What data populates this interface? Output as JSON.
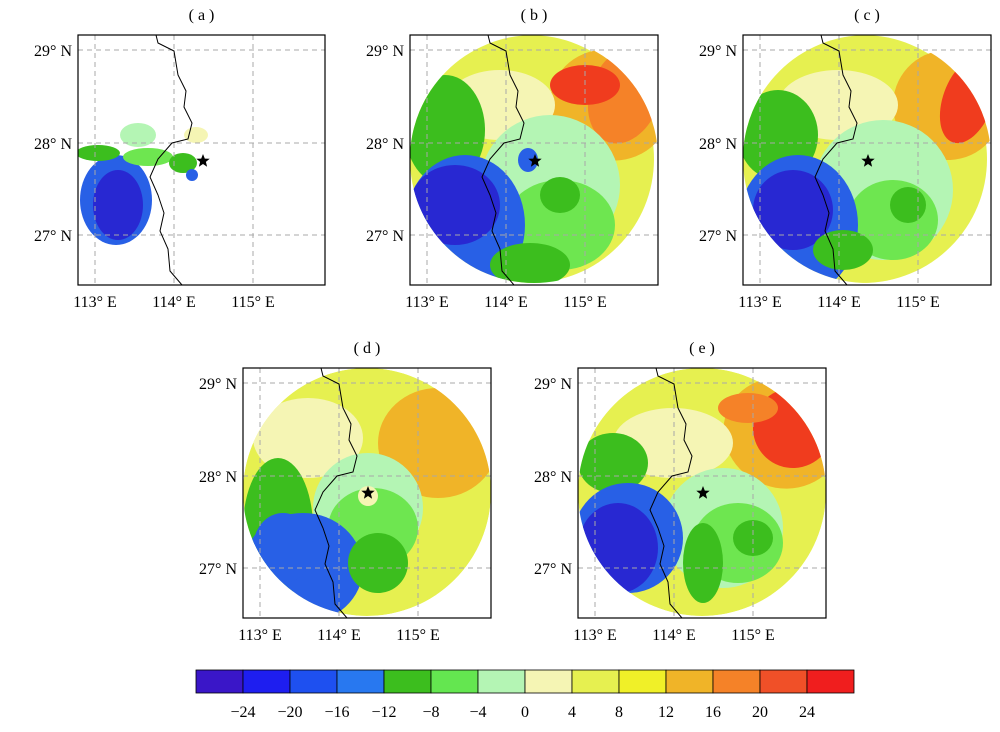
{
  "panels": [
    {
      "id": "a",
      "label": "( a )",
      "lat_labels": [
        "29° N",
        "28° N",
        "27° N"
      ],
      "lon_labels": [
        "113° E",
        "114° E",
        "115° E"
      ]
    },
    {
      "id": "b",
      "label": "( b )",
      "lat_labels": [
        "29° N",
        "28° N",
        "27° N"
      ],
      "lon_labels": [
        "113° E",
        "114° E",
        "115° E"
      ]
    },
    {
      "id": "c",
      "label": "( c )",
      "lat_labels": [
        "29° N",
        "28° N",
        "27° N"
      ],
      "lon_labels": [
        "113° E",
        "114° E",
        "115° E"
      ]
    },
    {
      "id": "d",
      "label": "( d )",
      "lat_labels": [
        "29° N",
        "28° N",
        "27° N"
      ],
      "lon_labels": [
        "113° E",
        "114° E",
        "115° E"
      ]
    },
    {
      "id": "e",
      "label": "( e )",
      "lat_labels": [
        "29° N",
        "28° N",
        "27° N"
      ],
      "lon_labels": [
        "113° E",
        "114° E",
        "115° E"
      ]
    }
  ],
  "colorbar": {
    "colors": [
      "#3a16c8",
      "#1e1ef0",
      "#1e50f0",
      "#2878f0",
      "#3cbe1e",
      "#64e650",
      "#b4f5b4",
      "#f5f5b4",
      "#e6f050",
      "#f0f028",
      "#f0b428",
      "#f58228",
      "#f05028",
      "#f01e1e"
    ],
    "tick_labels": [
      "−24",
      "−20",
      "−16",
      "−12",
      "−8",
      "−4",
      "0",
      "4",
      "8",
      "12",
      "16",
      "20",
      "24"
    ]
  },
  "colors": {
    "blue_dark": "#2828d2",
    "blue": "#2860e6",
    "green": "#3cbe1e",
    "green_light": "#6ee650",
    "pale_green": "#b4f5b4",
    "pale_yellow": "#f5f5b4",
    "yellow": "#e6f050",
    "orange": "#f0b428",
    "orange_dark": "#f58228",
    "red": "#f03c1e"
  }
}
